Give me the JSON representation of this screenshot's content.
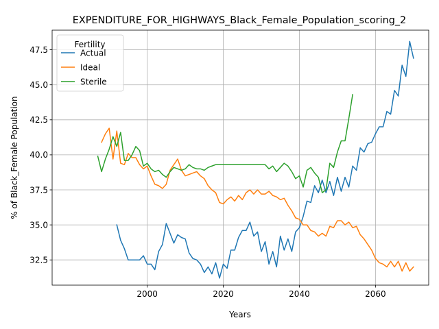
{
  "chart_data": {
    "type": "line",
    "title": "EXPENDITURE_FOR_HIGHWAYS_Black_Female_Population_scoring_2",
    "xlabel": "Years",
    "ylabel": "% of Black_Female Population",
    "xlim": [
      1975,
      2074
    ],
    "ylim": [
      30.7,
      48.9
    ],
    "xticks": [
      2000,
      2020,
      2040,
      2060
    ],
    "xtick_labels": [
      "2000",
      "2020",
      "2040",
      "2060"
    ],
    "yticks": [
      32.5,
      35.0,
      37.5,
      40.0,
      42.5,
      45.0,
      47.5
    ],
    "ytick_labels": [
      "32.5",
      "35.0",
      "37.5",
      "40.0",
      "42.5",
      "45.0",
      "47.5"
    ],
    "grid": true,
    "legend": {
      "title": "Fertility",
      "placement": "top-left"
    },
    "series": [
      {
        "name": "Actual",
        "color": "#1f77b4",
        "x": [
          1992,
          1993,
          1994,
          1995,
          1996,
          1997,
          1998,
          1999,
          2000,
          2001,
          2002,
          2003,
          2004,
          2005,
          2006,
          2007,
          2008,
          2009,
          2010,
          2011,
          2012,
          2013,
          2014,
          2015,
          2016,
          2017,
          2018,
          2019,
          2020,
          2021,
          2022,
          2023,
          2024,
          2025,
          2026,
          2027,
          2028,
          2029,
          2030,
          2031,
          2032,
          2033,
          2034,
          2035,
          2036,
          2037,
          2038,
          2039,
          2040,
          2041,
          2042,
          2043,
          2044,
          2045,
          2046,
          2047,
          2048,
          2049,
          2050,
          2051,
          2052,
          2053,
          2054,
          2055,
          2056,
          2057,
          2058,
          2059,
          2060,
          2061,
          2062,
          2063,
          2064,
          2065,
          2066,
          2067,
          2068,
          2069,
          2070
        ],
        "values": [
          35.0,
          33.9,
          33.3,
          32.5,
          32.5,
          32.5,
          32.5,
          32.8,
          32.2,
          32.2,
          31.8,
          33.1,
          33.6,
          35.1,
          34.4,
          33.7,
          34.3,
          34.1,
          34.0,
          33.0,
          32.6,
          32.5,
          32.2,
          31.6,
          32.0,
          31.5,
          32.3,
          31.2,
          32.2,
          31.9,
          33.2,
          33.2,
          34.1,
          34.6,
          34.6,
          35.2,
          34.2,
          34.5,
          33.1,
          33.8,
          32.2,
          33.1,
          32.0,
          34.2,
          33.2,
          34.0,
          33.1,
          34.5,
          34.8,
          35.6,
          36.7,
          36.6,
          37.8,
          37.3,
          38.2,
          37.3,
          38.1,
          37.1,
          38.4,
          37.4,
          38.4,
          37.7,
          39.2,
          38.9,
          40.5,
          40.2,
          40.8,
          40.9,
          41.5,
          42.0,
          42.0,
          43.1,
          42.9,
          44.6,
          44.2,
          46.4,
          45.6,
          48.1,
          46.9
        ]
      },
      {
        "name": "Ideal",
        "color": "#ff7f0e",
        "x": [
          1988,
          1989,
          1990,
          1991,
          1992,
          1993,
          1994,
          1995,
          1996,
          1997,
          1998,
          1999,
          2000,
          2001,
          2002,
          2003,
          2004,
          2005,
          2006,
          2007,
          2008,
          2009,
          2010,
          2011,
          2012,
          2013,
          2014,
          2015,
          2016,
          2017,
          2018,
          2019,
          2020,
          2021,
          2022,
          2023,
          2024,
          2025,
          2026,
          2027,
          2028,
          2029,
          2030,
          2031,
          2032,
          2033,
          2034,
          2035,
          2036,
          2037,
          2038,
          2039,
          2040,
          2041,
          2042,
          2043,
          2044,
          2045,
          2046,
          2047,
          2048,
          2049,
          2050,
          2051,
          2052,
          2053,
          2054,
          2055,
          2056,
          2057,
          2058,
          2059,
          2060,
          2061,
          2062,
          2063,
          2064,
          2065,
          2066,
          2067,
          2068,
          2069,
          2070
        ],
        "values": [
          40.9,
          41.5,
          41.9,
          39.7,
          41.7,
          39.4,
          39.3,
          40.1,
          39.8,
          39.8,
          39.3,
          39.0,
          39.2,
          38.5,
          37.9,
          37.8,
          37.6,
          37.9,
          38.9,
          39.3,
          39.7,
          38.9,
          38.5,
          38.6,
          38.7,
          38.8,
          38.5,
          38.3,
          37.8,
          37.5,
          37.3,
          36.6,
          36.5,
          36.8,
          37.0,
          36.7,
          37.1,
          36.8,
          37.3,
          37.5,
          37.2,
          37.5,
          37.2,
          37.2,
          37.4,
          37.1,
          37.0,
          36.8,
          36.9,
          36.4,
          36.0,
          35.5,
          35.4,
          35.0,
          35.0,
          34.6,
          34.5,
          34.2,
          34.4,
          34.2,
          34.9,
          34.8,
          35.3,
          35.3,
          35.0,
          35.2,
          34.8,
          34.9,
          34.3,
          34.0,
          33.6,
          33.2,
          32.6,
          32.3,
          32.2,
          32.0,
          32.4,
          32.0,
          32.4,
          31.7,
          32.3,
          31.7,
          32.0
        ]
      },
      {
        "name": "Sterile",
        "color": "#2ca02c",
        "x": [
          1987,
          1988,
          1989,
          1990,
          1991,
          1992,
          1993,
          1994,
          1995,
          1996,
          1997,
          1998,
          1999,
          2000,
          2001,
          2002,
          2003,
          2004,
          2005,
          2006,
          2007,
          2008,
          2009,
          2010,
          2011,
          2012,
          2013,
          2014,
          2015,
          2016,
          2017,
          2018,
          2019,
          2020,
          2021,
          2022,
          2023,
          2024,
          2025,
          2026,
          2027,
          2028,
          2029,
          2030,
          2031,
          2032,
          2033,
          2034,
          2035,
          2036,
          2037,
          2038,
          2039,
          2040,
          2041,
          2042,
          2043,
          2044,
          2045,
          2046,
          2047,
          2048,
          2049,
          2050,
          2051,
          2052,
          2053,
          2054
        ],
        "values": [
          39.9,
          38.8,
          39.7,
          40.4,
          41.3,
          40.6,
          41.6,
          39.6,
          39.6,
          40.0,
          40.6,
          40.3,
          39.2,
          39.4,
          39.0,
          38.8,
          38.9,
          38.6,
          38.4,
          38.8,
          39.1,
          39.0,
          38.9,
          39.0,
          39.3,
          39.1,
          39.0,
          39.0,
          38.9,
          39.1,
          39.2,
          39.3,
          39.3,
          39.3,
          39.3,
          39.3,
          39.3,
          39.3,
          39.3,
          39.3,
          39.3,
          39.3,
          39.3,
          39.3,
          39.3,
          39.0,
          39.2,
          38.8,
          39.1,
          39.4,
          39.2,
          38.8,
          38.3,
          38.5,
          37.7,
          38.9,
          39.1,
          38.7,
          38.4,
          37.3,
          37.5,
          39.4,
          39.1,
          40.2,
          41.0,
          41.0,
          42.6,
          44.3
        ]
      }
    ]
  }
}
